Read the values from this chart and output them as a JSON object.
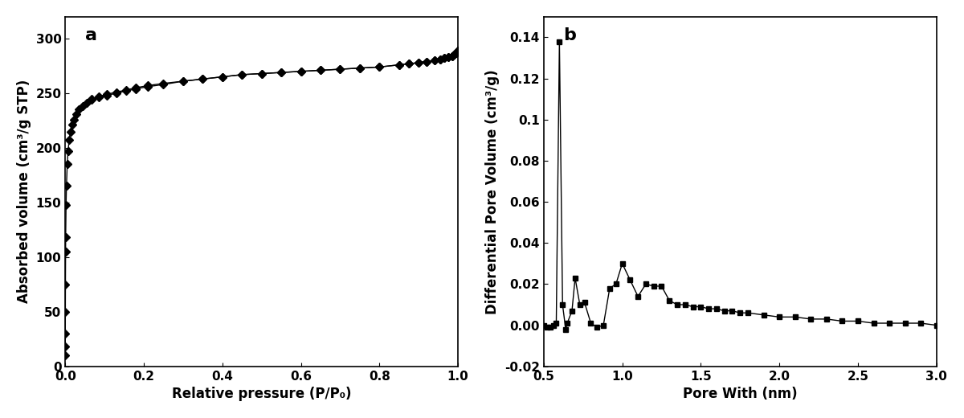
{
  "panel_a": {
    "label": "a",
    "xlabel": "Relative pressure (P/P₀)",
    "ylabel": "Absorbed volume (cm³/g STP)",
    "xlim": [
      0,
      1.0
    ],
    "ylim": [
      0,
      320
    ],
    "yticks": [
      0,
      50,
      100,
      150,
      200,
      250,
      300
    ],
    "xticks": [
      0.0,
      0.2,
      0.4,
      0.6,
      0.8,
      1.0
    ],
    "marker": "D",
    "markersize": 5,
    "color": "#000000",
    "x": [
      2e-05,
      5e-05,
      0.0001,
      0.0002,
      0.0004,
      0.0008,
      0.001,
      0.002,
      0.003,
      0.005,
      0.007,
      0.01,
      0.013,
      0.017,
      0.022,
      0.028,
      0.035,
      0.044,
      0.055,
      0.068,
      0.085,
      0.105,
      0.13,
      0.155,
      0.18,
      0.21,
      0.25,
      0.3,
      0.35,
      0.4,
      0.45,
      0.5,
      0.55,
      0.6,
      0.65,
      0.7,
      0.75,
      0.8,
      0.85,
      0.875,
      0.9,
      0.92,
      0.94,
      0.955,
      0.965,
      0.975,
      0.985,
      0.99,
      0.995,
      1.0
    ],
    "y_ads": [
      10,
      18,
      30,
      50,
      75,
      105,
      118,
      148,
      165,
      185,
      197,
      207,
      215,
      221,
      226,
      231,
      235,
      238,
      241,
      244,
      246,
      248,
      250,
      252,
      254,
      256,
      258,
      261,
      263,
      265,
      267,
      268,
      269,
      270,
      271,
      272,
      273,
      274,
      276,
      277,
      278,
      279,
      280,
      281,
      282,
      283,
      284,
      285,
      287,
      289
    ],
    "x_des": [
      1.0,
      0.995,
      0.99,
      0.985,
      0.975,
      0.965,
      0.955,
      0.94,
      0.92,
      0.9,
      0.875,
      0.85,
      0.8,
      0.75,
      0.7,
      0.65,
      0.6,
      0.55,
      0.5,
      0.45,
      0.4,
      0.35,
      0.3,
      0.25,
      0.21,
      0.18,
      0.155,
      0.13,
      0.105,
      0.085,
      0.068
    ],
    "y_des": [
      289,
      287,
      285,
      284,
      283,
      282,
      281,
      280,
      279,
      278,
      277,
      276,
      274,
      273,
      272,
      271,
      270,
      269,
      268,
      267,
      265,
      263,
      261,
      259,
      257,
      255,
      253,
      251,
      249,
      247,
      245
    ]
  },
  "panel_b": {
    "label": "b",
    "xlabel": "Pore With (nm)",
    "ylabel": "Differential Pore Volume (cm³/g)",
    "xlim": [
      0.5,
      3.0
    ],
    "ylim": [
      -0.02,
      0.15
    ],
    "yticks": [
      -0.02,
      0.0,
      0.02,
      0.04,
      0.06,
      0.08,
      0.1,
      0.12,
      0.14
    ],
    "xticks": [
      0.5,
      1.0,
      1.5,
      2.0,
      2.5,
      3.0
    ],
    "marker": "s",
    "markersize": 5,
    "color": "#000000",
    "x": [
      0.5,
      0.52,
      0.54,
      0.56,
      0.58,
      0.6,
      0.62,
      0.64,
      0.65,
      0.68,
      0.7,
      0.73,
      0.76,
      0.8,
      0.84,
      0.88,
      0.92,
      0.96,
      1.0,
      1.05,
      1.1,
      1.15,
      1.2,
      1.25,
      1.3,
      1.35,
      1.4,
      1.45,
      1.5,
      1.55,
      1.6,
      1.65,
      1.7,
      1.75,
      1.8,
      1.9,
      2.0,
      2.1,
      2.2,
      2.3,
      2.4,
      2.5,
      2.6,
      2.7,
      2.8,
      2.9,
      3.0
    ],
    "y": [
      0.0,
      -0.001,
      -0.001,
      0.0,
      0.001,
      0.138,
      0.01,
      -0.002,
      0.001,
      0.007,
      0.023,
      0.01,
      0.011,
      0.001,
      -0.001,
      0.0,
      0.018,
      0.02,
      0.03,
      0.022,
      0.014,
      0.02,
      0.019,
      0.019,
      0.012,
      0.01,
      0.01,
      0.009,
      0.009,
      0.008,
      0.008,
      0.007,
      0.007,
      0.006,
      0.006,
      0.005,
      0.004,
      0.004,
      0.003,
      0.003,
      0.002,
      0.002,
      0.001,
      0.001,
      0.001,
      0.001,
      0.0
    ]
  }
}
